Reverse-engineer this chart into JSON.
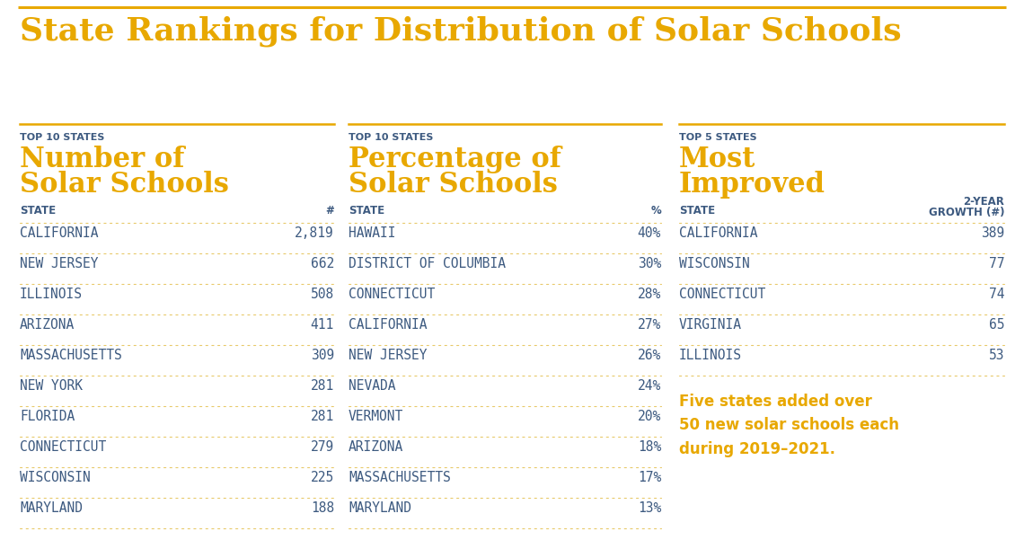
{
  "title": "State Rankings for Distribution of Solar Schools",
  "title_color": "#E8A800",
  "background_color": "#FFFFFF",
  "gold_line_color": "#E8A800",
  "label_color": "#3D5A80",
  "header_color": "#E8A800",
  "row_text_color": "#3D5A80",
  "row_divider_color": "#E8C96A",
  "annotation_color": "#E8A800",
  "section_tag_color": "#3D5A80",
  "col1_label_top": "TOP 10 STATES",
  "col1_header_line1": "Number of",
  "col1_header_line2": "Solar Schools",
  "col1_col1": "STATE",
  "col1_col2": "#",
  "col1_states": [
    "CALIFORNIA",
    "NEW JERSEY",
    "ILLINOIS",
    "ARIZONA",
    "MASSACHUSETTS",
    "NEW YORK",
    "FLORIDA",
    "CONNECTICUT",
    "WISCONSIN",
    "MARYLAND"
  ],
  "col1_values": [
    "2,819",
    "662",
    "508",
    "411",
    "309",
    "281",
    "281",
    "279",
    "225",
    "188"
  ],
  "col2_label_top": "TOP 10 STATES",
  "col2_header_line1": "Percentage of",
  "col2_header_line2": "Solar Schools",
  "col2_col1": "STATE",
  "col2_col2": "%",
  "col2_states": [
    "HAWAII",
    "DISTRICT OF COLUMBIA",
    "CONNECTICUT",
    "CALIFORNIA",
    "NEW JERSEY",
    "NEVADA",
    "VERMONT",
    "ARIZONA",
    "MASSACHUSETTS",
    "MARYLAND"
  ],
  "col2_values": [
    "40%",
    "30%",
    "28%",
    "27%",
    "26%",
    "24%",
    "20%",
    "18%",
    "17%",
    "13%"
  ],
  "col3_label_top": "TOP 5 STATES",
  "col3_header_line1": "Most",
  "col3_header_line2": "Improved",
  "col3_col1": "STATE",
  "col3_col2_line1": "2-YEAR",
  "col3_col2_line2": "GROWTH (#)",
  "col3_states": [
    "CALIFORNIA",
    "WISCONSIN",
    "CONNECTICUT",
    "VIRGINIA",
    "ILLINOIS"
  ],
  "col3_values": [
    "389",
    "77",
    "74",
    "65",
    "53"
  ],
  "col3_annotation": "Five states added over\n50 new solar schools each\nduring 2019–2021."
}
